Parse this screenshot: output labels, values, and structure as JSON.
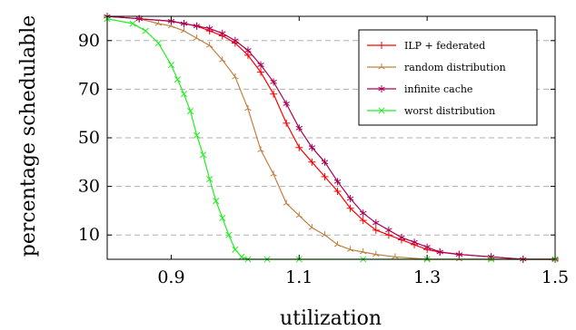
{
  "chart_data": {
    "type": "line",
    "xlabel": "utilization",
    "ylabel": "percentage schedulable",
    "xlim": [
      0.8,
      1.5
    ],
    "ylim": [
      0,
      100
    ],
    "xticks": [
      0.9,
      1.1,
      1.3,
      1.5
    ],
    "xtick_labels": [
      "0.9",
      "1.1",
      "1.3",
      "1.5"
    ],
    "yticks": [
      10,
      30,
      50,
      70,
      90
    ],
    "ytick_labels": [
      "10",
      "30",
      "50",
      "70",
      "90"
    ],
    "grid": "horizontal dashed",
    "legend_position": "top-right",
    "series": [
      {
        "name": "ILP + federated",
        "color": "#ff0000",
        "marker": "plus",
        "x": [
          0.8,
          0.85,
          0.9,
          0.92,
          0.94,
          0.96,
          0.98,
          1.0,
          1.02,
          1.04,
          1.06,
          1.08,
          1.1,
          1.12,
          1.14,
          1.16,
          1.18,
          1.2,
          1.22,
          1.24,
          1.26,
          1.28,
          1.3,
          1.32,
          1.35,
          1.4,
          1.45,
          1.5
        ],
        "values": [
          100,
          99,
          98,
          97,
          96,
          94,
          92,
          89,
          84,
          77,
          68,
          56,
          46,
          40,
          34,
          28,
          21,
          16,
          12,
          10,
          8,
          6,
          4,
          3,
          2,
          1,
          0,
          0
        ]
      },
      {
        "name": "random distribution",
        "color": "#c08040",
        "marker": "tri",
        "x": [
          0.8,
          0.85,
          0.88,
          0.9,
          0.92,
          0.94,
          0.96,
          0.98,
          1.0,
          1.02,
          1.04,
          1.06,
          1.08,
          1.1,
          1.12,
          1.14,
          1.16,
          1.18,
          1.2,
          1.22,
          1.25,
          1.3,
          1.35,
          1.4,
          1.5
        ],
        "values": [
          100,
          99,
          97,
          96,
          94,
          91,
          88,
          82,
          75,
          62,
          45,
          35,
          23,
          18,
          13,
          10,
          6,
          4,
          3,
          2,
          1,
          0,
          0,
          0,
          0
        ]
      },
      {
        "name": "infinite cache",
        "color": "#aa0055",
        "marker": "star",
        "x": [
          0.8,
          0.85,
          0.9,
          0.92,
          0.94,
          0.96,
          0.98,
          1.0,
          1.02,
          1.04,
          1.06,
          1.08,
          1.1,
          1.12,
          1.14,
          1.16,
          1.18,
          1.2,
          1.22,
          1.24,
          1.26,
          1.28,
          1.3,
          1.32,
          1.35,
          1.4,
          1.45,
          1.5
        ],
        "values": [
          100,
          99,
          98,
          97,
          96,
          95,
          93,
          90,
          86,
          80,
          73,
          64,
          54,
          46,
          40,
          32,
          25,
          19,
          15,
          12,
          9,
          7,
          5,
          3,
          2,
          1,
          0,
          0
        ]
      },
      {
        "name": "worst distribution",
        "color": "#22ee22",
        "marker": "x",
        "x": [
          0.8,
          0.84,
          0.86,
          0.88,
          0.9,
          0.91,
          0.92,
          0.93,
          0.94,
          0.95,
          0.96,
          0.97,
          0.98,
          0.99,
          1.0,
          1.01,
          1.02,
          1.05,
          1.1,
          1.2,
          1.3,
          1.4,
          1.5
        ],
        "values": [
          99,
          97,
          94,
          89,
          80,
          74,
          68,
          61,
          51,
          43,
          33,
          24,
          17,
          10,
          4,
          1,
          0,
          0,
          0,
          0,
          0,
          0,
          0
        ]
      }
    ]
  }
}
